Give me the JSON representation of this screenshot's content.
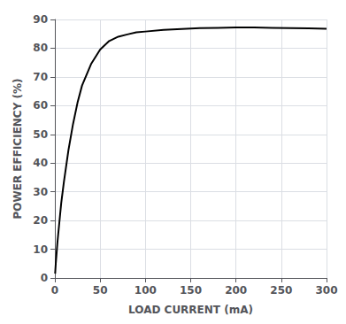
{
  "chart_data": {
    "type": "line",
    "xlabel": "LOAD CURRENT (mA)",
    "ylabel": "POWER EFFICIENCY (%)",
    "xlim": [
      0,
      300
    ],
    "ylim": [
      0,
      90
    ],
    "xticks": [
      0,
      50,
      100,
      150,
      200,
      250,
      300
    ],
    "yticks": [
      0,
      10,
      20,
      30,
      40,
      50,
      60,
      70,
      80,
      90
    ],
    "color": "#000000",
    "grid": true,
    "x": [
      0.3,
      0.5,
      1,
      2,
      3,
      5,
      7,
      10,
      15,
      20,
      25,
      30,
      40,
      50,
      60,
      70,
      80,
      90,
      100,
      120,
      140,
      160,
      180,
      200,
      220,
      240,
      260,
      280,
      300
    ],
    "values": [
      1.5,
      2.5,
      5.0,
      9.0,
      13.0,
      19.5,
      26.0,
      33.5,
      44.5,
      53.5,
      61.0,
      67.0,
      74.5,
      79.5,
      82.5,
      84.0,
      84.8,
      85.5,
      85.8,
      86.4,
      86.7,
      87.0,
      87.1,
      87.2,
      87.2,
      87.1,
      87.0,
      86.9,
      86.8
    ]
  }
}
